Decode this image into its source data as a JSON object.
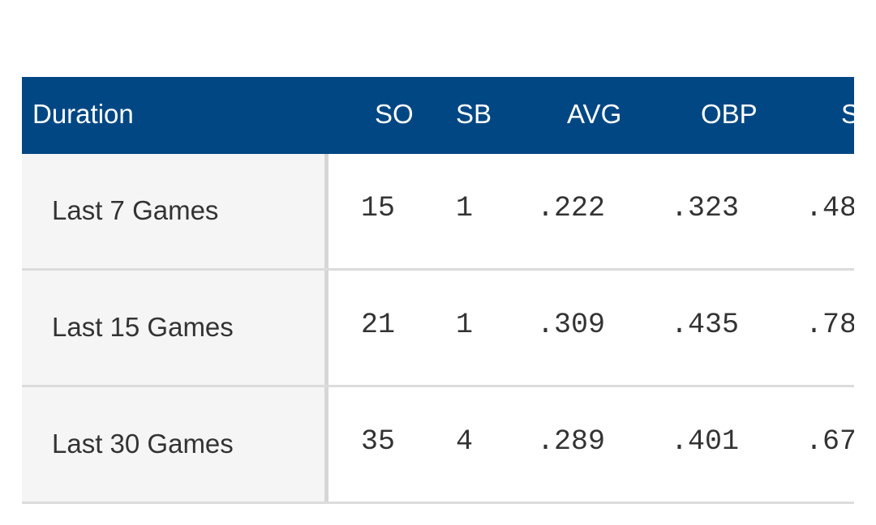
{
  "table": {
    "headers": {
      "duration": "Duration",
      "so": "SO",
      "sb": "SB",
      "avg": "AVG",
      "obp": "OBP",
      "slg": "S"
    },
    "rows": [
      {
        "label": "Last 7 Games",
        "so": "15",
        "sb": "1",
        "avg": ".222",
        "obp": ".323",
        "slg": ".48"
      },
      {
        "label": "Last 15 Games",
        "so": "21",
        "sb": "1",
        "avg": ".309",
        "obp": ".435",
        "slg": ".78"
      },
      {
        "label": "Last 30 Games",
        "so": "35",
        "sb": "4",
        "avg": ".289",
        "obp": ".401",
        "slg": ".67"
      }
    ]
  },
  "colors": {
    "header_bg": "#014784",
    "header_text": "#ffffff",
    "label_cell_bg": "#f5f5f5",
    "row_divider": "#dcdcdc",
    "body_text": "#333333"
  }
}
